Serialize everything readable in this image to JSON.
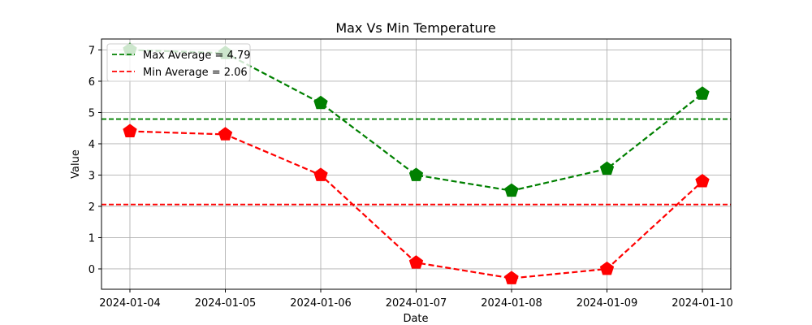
{
  "chart_data": {
    "type": "line",
    "title": "Max Vs Min Temperature",
    "xlabel": "Date",
    "ylabel": "Value",
    "categories": [
      "2024-01-04",
      "2024-01-05",
      "2024-01-06",
      "2024-01-07",
      "2024-01-08",
      "2024-01-09",
      "2024-01-10"
    ],
    "ylim": [
      -0.65,
      7.35
    ],
    "yticks": [
      0,
      1,
      2,
      3,
      4,
      5,
      6,
      7
    ],
    "grid": true,
    "series": [
      {
        "key": "max",
        "values": [
          7.0,
          6.9,
          5.3,
          3.0,
          2.5,
          3.2,
          5.6
        ],
        "color": "#008000",
        "line_style": "dashed",
        "marker": "pentagon"
      },
      {
        "key": "min",
        "values": [
          4.4,
          4.3,
          3.0,
          0.2,
          -0.3,
          0.0,
          2.8
        ],
        "color": "#ff0000",
        "line_style": "dashed",
        "marker": "pentagon"
      }
    ],
    "reference_lines": [
      {
        "name": "Max Average = 4.79",
        "value": 4.79,
        "color": "#008000",
        "line_style": "dashed"
      },
      {
        "name": "Min Average = 2.06",
        "value": 2.06,
        "color": "#ff0000",
        "line_style": "dashed"
      }
    ],
    "legend": {
      "placement": "top-left",
      "entries": [
        "Max Average = 4.79",
        "Min Average = 2.06"
      ]
    }
  }
}
